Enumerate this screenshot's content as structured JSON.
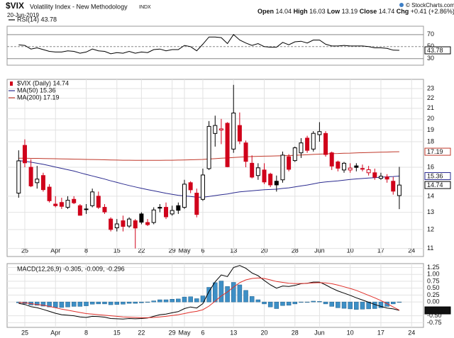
{
  "header": {
    "symbol": "$VIX",
    "name": "Volatility Index - New Methodology",
    "exchange": "INDX",
    "date": "20-Jun-2019",
    "quote": [
      {
        "label": "Open",
        "value": 14.04
      },
      {
        "label": "High",
        "value": 16.03
      },
      {
        "label": "Low",
        "value": 13.19
      },
      {
        "label": "Close",
        "value": 14.74
      },
      {
        "label": "Chg",
        "value": "+0.41"
      }
    ],
    "change_percent": "(+2.86%)",
    "credit": "© StockCharts.com"
  },
  "chart_data": [
    {
      "type": "line",
      "grid": true,
      "ylim": [
        19,
        84
      ],
      "yticks": [
        30,
        50,
        70
      ],
      "series": [
        {
          "name": "RSI(14) 43.78",
          "color": "#000000",
          "end_label": "43.78",
          "values": [
            53,
            52,
            46,
            48,
            45,
            42,
            41,
            41,
            43,
            42,
            39,
            41,
            46,
            43,
            42,
            38,
            40,
            39,
            42,
            39,
            41,
            40,
            45,
            46,
            43,
            45,
            45,
            52,
            50,
            43,
            54,
            66,
            66,
            65,
            55,
            70,
            61,
            56,
            52,
            55,
            50,
            49,
            49,
            57,
            53,
            58,
            59,
            56,
            61,
            61,
            54,
            51,
            51,
            52,
            51,
            51,
            51,
            50,
            48,
            48,
            47,
            44,
            43.78
          ]
        }
      ]
    },
    {
      "type": "candlestick",
      "name": "$VIX (Daily) 14.74",
      "end_label": "14.74",
      "up_color": "#000000",
      "down_color": "#d0021b",
      "log_scale": true,
      "grid": true,
      "ylim": [
        10.6,
        24
      ],
      "yticks": [
        11,
        12,
        13,
        14,
        16,
        18,
        19,
        20,
        21,
        22,
        23
      ],
      "categories": [
        null,
        "25",
        null,
        null,
        null,
        null,
        "Apr",
        null,
        null,
        null,
        null,
        "8",
        null,
        null,
        null,
        null,
        "15",
        null,
        null,
        null,
        "22",
        null,
        null,
        null,
        null,
        "29",
        null,
        "May",
        null,
        null,
        "6",
        null,
        null,
        null,
        null,
        "13",
        null,
        null,
        null,
        null,
        "20",
        null,
        null,
        null,
        null,
        "28",
        null,
        null,
        null,
        "Jun",
        null,
        null,
        null,
        null,
        "10",
        null,
        null,
        null,
        null,
        "17",
        null,
        null,
        null,
        null,
        "24"
      ],
      "open": [
        14.2,
        17.7,
        16.0,
        14.9,
        15.4,
        14.6,
        13.5,
        13.6,
        13.3,
        13.8,
        13.4,
        13.2,
        13.4,
        14.0,
        13.3,
        12.6,
        12.1,
        12.5,
        12.2,
        12.5,
        12.9,
        12.4,
        12.4,
        13.3,
        13.3,
        12.9,
        13.4,
        13.3,
        14.9,
        14.2,
        13.8,
        15.9,
        18.7,
        19.0,
        19.6,
        17.4,
        19.4,
        17.9,
        16.3,
        15.4,
        15.8,
        15.5,
        15.0,
        15.1,
        16.8,
        16.5,
        17.1,
        18.3,
        17.4,
        18.6,
        18.7,
        17.1,
        16.4,
        15.8,
        15.8,
        16.1,
        15.9,
        15.6,
        15.6,
        15.2,
        15.3,
        15.0,
        14.04,
        null,
        null
      ],
      "high": [
        17.3,
        18.2,
        16.6,
        16.1,
        15.6,
        14.8,
        14.0,
        13.9,
        14.0,
        14.0,
        13.5,
        13.5,
        14.5,
        14.3,
        13.5,
        12.7,
        12.6,
        12.8,
        12.7,
        12.6,
        13.0,
        12.6,
        13.3,
        13.5,
        13.6,
        13.4,
        13.6,
        15.1,
        15.0,
        14.5,
        15.9,
        19.8,
        20.3,
        20.0,
        19.7,
        23.4,
        20.6,
        18.1,
        16.9,
        16.3,
        16.3,
        15.6,
        15.4,
        17.2,
        17.0,
        17.6,
        18.3,
        18.5,
        18.9,
        19.7,
        18.9,
        17.2,
        16.5,
        16.4,
        16.3,
        16.3,
        16.2,
        16.1,
        15.9,
        15.6,
        15.5,
        15.3,
        16.03,
        null,
        null
      ],
      "low": [
        13.9,
        16.0,
        14.6,
        14.5,
        14.3,
        13.6,
        13.3,
        13.2,
        13.2,
        13.5,
        12.8,
        12.9,
        13.3,
        13.2,
        12.9,
        11.9,
        11.9,
        11.9,
        12.1,
        11.0,
        12.3,
        12.2,
        12.3,
        13.0,
        12.6,
        12.8,
        12.9,
        13.2,
        14.2,
        12.7,
        13.7,
        15.8,
        17.6,
        17.8,
        16.0,
        17.1,
        17.8,
        16.0,
        15.2,
        15.1,
        14.8,
        14.6,
        14.3,
        14.9,
        15.7,
        16.4,
        16.7,
        17.1,
        17.2,
        18.0,
        16.8,
        15.8,
        15.7,
        15.6,
        15.6,
        15.7,
        15.7,
        15.4,
        15.1,
        15.1,
        14.9,
        14.1,
        13.19,
        null,
        null
      ],
      "close": [
        16.48,
        16.33,
        14.68,
        15.15,
        14.43,
        13.71,
        13.4,
        13.36,
        13.74,
        13.58,
        12.82,
        13.18,
        14.28,
        13.3,
        13.02,
        12.01,
        12.32,
        12.18,
        12.6,
        12.09,
        12.42,
        12.28,
        13.14,
        13.25,
        12.73,
        13.11,
        13.12,
        14.8,
        14.42,
        12.87,
        15.44,
        19.32,
        19.4,
        19.1,
        16.04,
        20.55,
        18.06,
        16.44,
        15.29,
        15.96,
        14.95,
        14.75,
        14.75,
        16.92,
        15.85,
        17.5,
        17.9,
        17.3,
        18.71,
        18.86,
        16.97,
        16.09,
        15.93,
        16.3,
        15.94,
        15.99,
        15.91,
        15.82,
        15.28,
        15.35,
        15.15,
        14.33,
        14.74,
        null,
        null
      ],
      "series": [
        {
          "name": "MA(50) 15.36",
          "color": "#2b2b8f",
          "end_label": "15.36",
          "values": [
            16.5,
            16.45,
            16.38,
            16.3,
            16.22,
            16.12,
            16.02,
            15.92,
            15.82,
            15.72,
            15.6,
            15.48,
            15.37,
            15.26,
            15.15,
            15.03,
            14.92,
            14.81,
            14.71,
            14.61,
            14.52,
            14.43,
            14.35,
            14.27,
            14.19,
            14.12,
            14.06,
            14.02,
            13.98,
            13.94,
            13.93,
            13.98,
            14.04,
            14.1,
            14.14,
            14.22,
            14.28,
            14.32,
            14.35,
            14.39,
            14.42,
            14.44,
            14.46,
            14.51,
            14.55,
            14.61,
            14.68,
            14.74,
            14.82,
            14.9,
            14.95,
            14.99,
            15.03,
            15.08,
            15.12,
            15.16,
            15.19,
            15.22,
            15.25,
            15.28,
            15.31,
            15.33,
            15.36,
            null,
            null
          ]
        },
        {
          "name": "MA(200) 17.19",
          "color": "#c0392b",
          "end_label": "17.19",
          "values": [
            16.68,
            16.68,
            16.67,
            16.67,
            16.66,
            16.65,
            16.64,
            16.63,
            16.62,
            16.61,
            16.6,
            16.59,
            16.58,
            16.57,
            16.56,
            16.55,
            16.54,
            16.53,
            16.53,
            16.52,
            16.52,
            16.52,
            16.52,
            16.52,
            16.53,
            16.53,
            16.54,
            16.55,
            16.56,
            16.57,
            16.59,
            16.62,
            16.65,
            16.68,
            16.7,
            16.74,
            16.77,
            16.79,
            16.81,
            16.83,
            16.84,
            16.85,
            16.86,
            16.88,
            16.89,
            16.91,
            16.93,
            16.95,
            16.98,
            17.0,
            17.02,
            17.04,
            17.05,
            17.07,
            17.08,
            17.1,
            17.11,
            17.12,
            17.14,
            17.15,
            17.16,
            17.18,
            17.19,
            null,
            null
          ]
        }
      ]
    },
    {
      "type": "line",
      "legend_text": "MACD(12,26,9) -0.305, -0.009, -0.296",
      "grid": true,
      "ylim": [
        -0.92,
        1.39
      ],
      "yticks": [
        1.25,
        {
          "value": 1,
          "label": "1.00"
        },
        0.75,
        {
          "value": 0.5,
          "label": "0.50"
        },
        0.25,
        {
          "value": 0,
          "label": "0.00"
        },
        {
          "value": -0.5,
          "label": "-0.50"
        },
        {
          "value": -0.75,
          "label": "-0.75"
        }
      ],
      "categories": [
        null,
        "25",
        null,
        null,
        null,
        null,
        "Apr",
        null,
        null,
        null,
        null,
        "8",
        null,
        null,
        null,
        null,
        "15",
        null,
        null,
        null,
        "22",
        null,
        null,
        null,
        null,
        "29",
        null,
        "May",
        null,
        null,
        "6",
        null,
        null,
        null,
        null,
        "13",
        null,
        null,
        null,
        null,
        "20",
        null,
        null,
        null,
        null,
        "28",
        null,
        null,
        null,
        "Jun",
        null,
        null,
        null,
        null,
        "10",
        null,
        null,
        null,
        null,
        "17",
        null,
        null,
        null,
        null,
        "24"
      ],
      "series": [
        {
          "style": "bar",
          "color": "#3d8fc6",
          "values": [
            -0.03,
            -0.06,
            -0.11,
            -0.12,
            -0.15,
            -0.18,
            -0.2,
            -0.2,
            -0.18,
            -0.16,
            -0.16,
            -0.14,
            -0.08,
            -0.07,
            -0.07,
            -0.1,
            -0.09,
            -0.08,
            -0.05,
            -0.05,
            -0.03,
            -0.01,
            0.04,
            0.08,
            0.08,
            0.1,
            0.11,
            0.18,
            0.19,
            0.12,
            0.22,
            0.53,
            0.7,
            0.76,
            0.56,
            0.71,
            0.62,
            0.42,
            0.2,
            0.08,
            -0.07,
            -0.18,
            -0.24,
            -0.13,
            -0.12,
            -0.07,
            -0.01,
            0.0,
            0.03,
            0.02,
            -0.07,
            -0.16,
            -0.21,
            -0.23,
            -0.25,
            -0.27,
            -0.26,
            -0.25,
            -0.24,
            -0.21,
            -0.16,
            -0.07,
            -0.009,
            null,
            null
          ]
        },
        {
          "style": "line",
          "color": "#000000",
          "end_label": "-0.305",
          "values": [
            -0.05,
            -0.09,
            -0.17,
            -0.21,
            -0.27,
            -0.34,
            -0.41,
            -0.46,
            -0.48,
            -0.5,
            -0.54,
            -0.56,
            -0.52,
            -0.53,
            -0.55,
            -0.6,
            -0.61,
            -0.62,
            -0.6,
            -0.61,
            -0.6,
            -0.58,
            -0.52,
            -0.46,
            -0.44,
            -0.39,
            -0.35,
            -0.24,
            -0.18,
            -0.22,
            -0.06,
            0.38,
            0.73,
            0.98,
            0.92,
            1.25,
            1.32,
            1.22,
            1.05,
            0.95,
            0.78,
            0.62,
            0.5,
            0.58,
            0.56,
            0.6,
            0.66,
            0.68,
            0.72,
            0.72,
            0.62,
            0.5,
            0.4,
            0.32,
            0.24,
            0.15,
            0.07,
            -0.01,
            -0.09,
            -0.16,
            -0.22,
            -0.25,
            -0.305,
            null,
            null
          ]
        },
        {
          "style": "line",
          "color": "#e0302a",
          "values": [
            -0.02,
            -0.03,
            -0.06,
            -0.09,
            -0.12,
            -0.16,
            -0.21,
            -0.26,
            -0.3,
            -0.34,
            -0.38,
            -0.42,
            -0.44,
            -0.46,
            -0.48,
            -0.5,
            -0.52,
            -0.54,
            -0.55,
            -0.56,
            -0.57,
            -0.57,
            -0.56,
            -0.54,
            -0.52,
            -0.49,
            -0.46,
            -0.42,
            -0.37,
            -0.34,
            -0.28,
            -0.15,
            0.03,
            0.22,
            0.36,
            0.54,
            0.7,
            0.8,
            0.85,
            0.87,
            0.85,
            0.8,
            0.74,
            0.71,
            0.68,
            0.67,
            0.67,
            0.68,
            0.69,
            0.7,
            0.69,
            0.66,
            0.61,
            0.55,
            0.49,
            0.42,
            0.33,
            0.24,
            0.15,
            0.05,
            -0.06,
            -0.18,
            -0.296,
            null,
            null
          ]
        }
      ]
    }
  ]
}
